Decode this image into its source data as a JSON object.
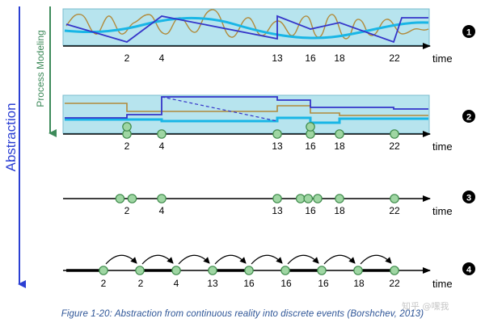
{
  "labels": {
    "left_axis": "Abstraction",
    "inner_axis": "Process Modeling",
    "time": "time",
    "caption": "Figure 1-20: Abstraction from continuous reality into discrete events (Borshchev, 2013)",
    "watermark": "知乎 @嘿我"
  },
  "colors": {
    "band_fill": "#b7e4ee",
    "band_stroke": "#7bbccd",
    "dark_blue": "#3535c9",
    "cyan": "#19b6e6",
    "brown": "#b18a3a",
    "event_fill": "#9fd6a3",
    "event_stroke": "#3d8a4a",
    "abstraction_arrow": "#2b3fd3",
    "process_arrow": "#3d8a5a",
    "caption": "#2e5597"
  },
  "panels": [
    {
      "number": "1",
      "ticks": [
        "2",
        "4",
        "13",
        "16",
        "18",
        "22"
      ],
      "events": []
    },
    {
      "number": "2",
      "ticks": [
        "2",
        "4",
        "13",
        "16",
        "18",
        "22"
      ],
      "events": [
        2,
        4,
        13,
        16,
        18,
        22
      ],
      "stacked_events": [
        2,
        16
      ]
    },
    {
      "number": "3",
      "ticks": [
        "2",
        "4",
        "13",
        "16",
        "18",
        "22"
      ],
      "events": [
        1.6,
        2.3,
        4,
        13,
        15.1,
        15.8,
        16.5,
        18,
        22
      ]
    },
    {
      "number": "4",
      "ticks": [
        "2",
        "2",
        "4",
        "13",
        "16",
        "16",
        "16",
        "18",
        "22"
      ],
      "events": 9
    }
  ]
}
